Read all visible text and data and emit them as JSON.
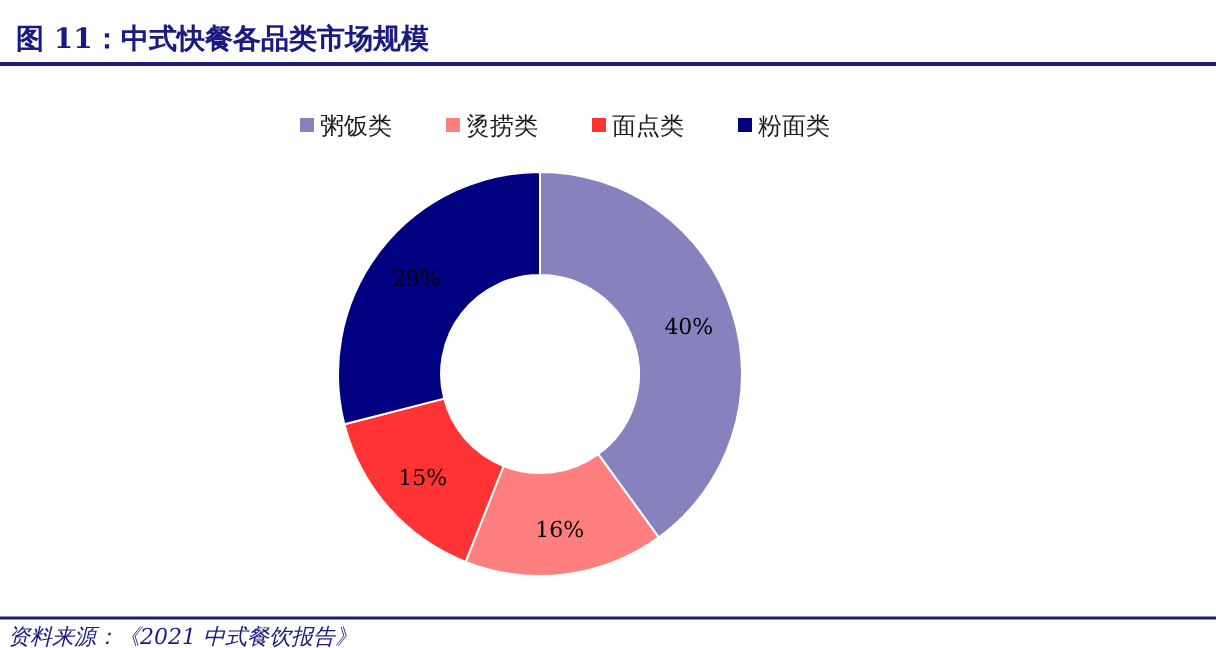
{
  "chart_data": {
    "type": "donut",
    "title": "图 11：中式快餐各品类市场规模",
    "categories": [
      "粥饭类",
      "烫捞类",
      "面点类",
      "粉面类"
    ],
    "values": [
      40,
      16,
      15,
      29
    ],
    "colors": [
      "#8781bd",
      "#ff7f7f",
      "#ff3333",
      "#000080"
    ],
    "value_labels": [
      "40%",
      "16%",
      "15%",
      "29%"
    ],
    "legend": "top",
    "annotations": [
      "资料来源：《2021 中式餐饮报告》"
    ]
  }
}
